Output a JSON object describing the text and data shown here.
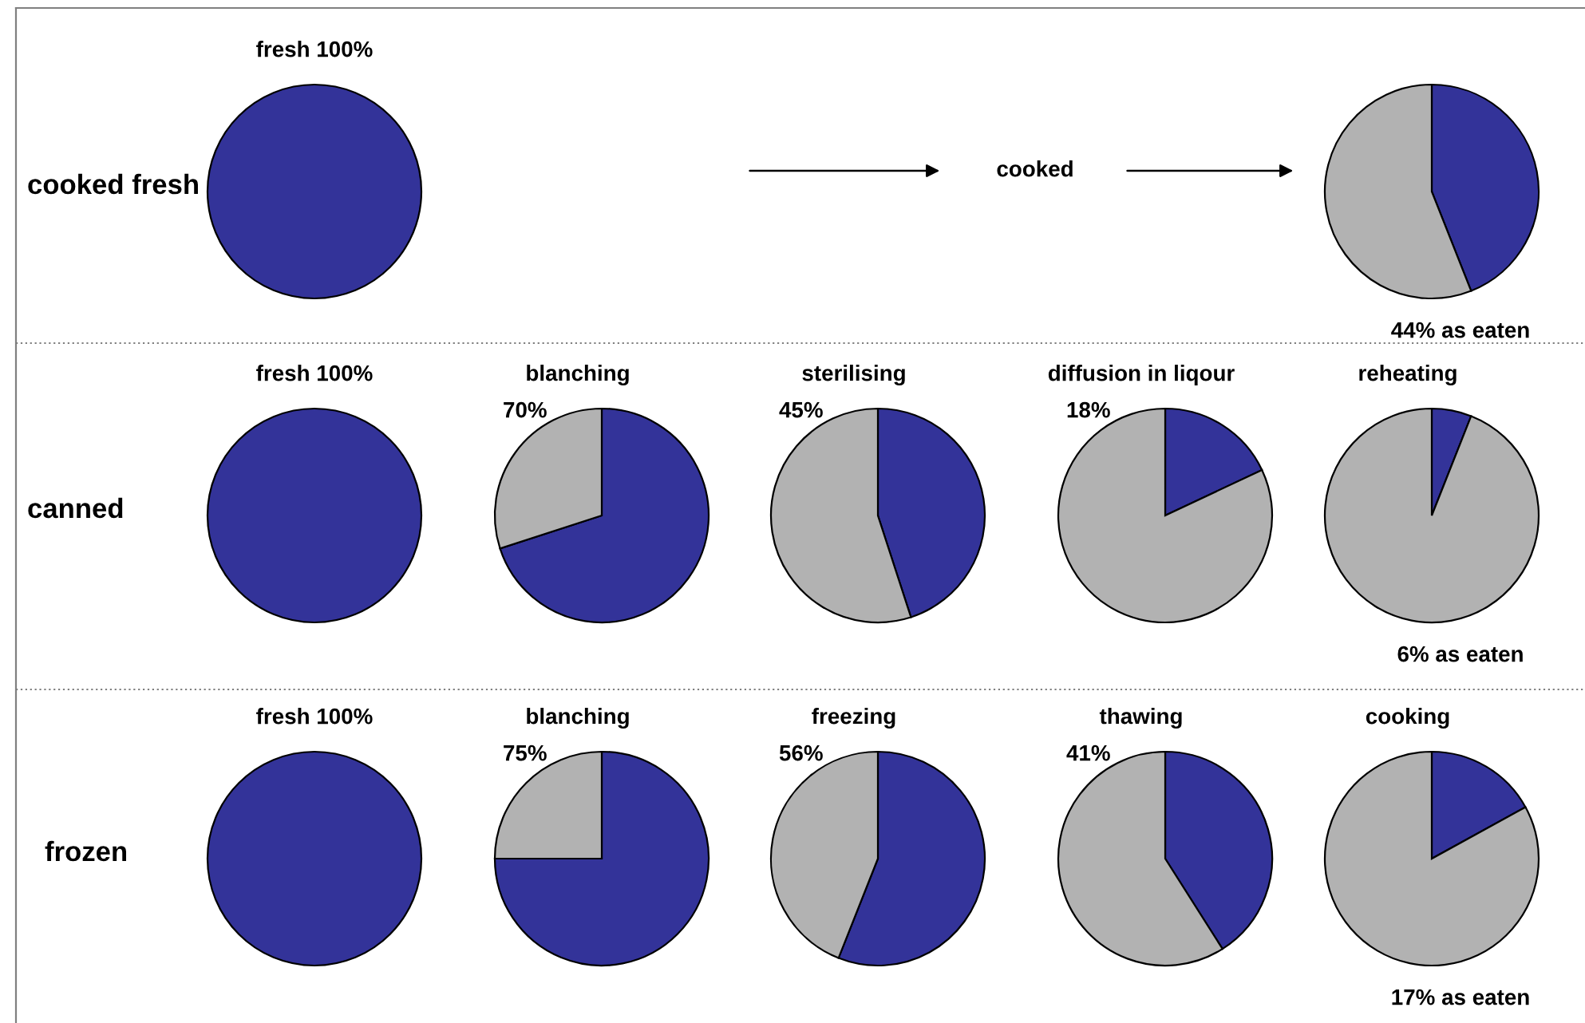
{
  "chart_data": [
    {
      "type": "other",
      "title": "cooked fresh"
    },
    {
      "type": "pie",
      "title": "fresh 100%",
      "categories": [
        null
      ],
      "values": [
        100
      ],
      "colors": [
        "#333399"
      ]
    },
    {
      "type": "other",
      "annotations": [
        "cooked"
      ]
    },
    {
      "type": "pie",
      "categories": [
        null,
        null
      ],
      "values": [
        44,
        56
      ],
      "colors": [
        "#333399",
        "#b2b2b2"
      ],
      "annotations": [
        "44% as eaten"
      ]
    },
    {
      "type": "other",
      "title": "canned"
    },
    {
      "type": "pie",
      "title": "fresh 100%",
      "categories": [
        null
      ],
      "values": [
        100
      ],
      "colors": [
        "#333399"
      ]
    },
    {
      "type": "pie",
      "title": "blanching",
      "subtitle": "70%",
      "categories": [
        null,
        null
      ],
      "values": [
        70,
        30
      ],
      "colors": [
        "#333399",
        "#b2b2b2"
      ]
    },
    {
      "type": "pie",
      "title": "sterilising",
      "subtitle": "45%",
      "categories": [
        null,
        null
      ],
      "values": [
        45,
        55
      ],
      "colors": [
        "#333399",
        "#b2b2b2"
      ]
    },
    {
      "type": "pie",
      "title": "diffusion in liqour",
      "subtitle": "18%",
      "categories": [
        null,
        null
      ],
      "values": [
        18,
        82
      ],
      "colors": [
        "#333399",
        "#b2b2b2"
      ]
    },
    {
      "type": "pie",
      "title": "reheating",
      "categories": [
        null,
        null
      ],
      "values": [
        6,
        94
      ],
      "colors": [
        "#333399",
        "#b2b2b2"
      ],
      "annotations": [
        "6% as eaten"
      ]
    },
    {
      "type": "other",
      "title": "frozen"
    },
    {
      "type": "pie",
      "title": "fresh 100%",
      "categories": [
        null
      ],
      "values": [
        100
      ],
      "colors": [
        "#333399"
      ]
    },
    {
      "type": "pie",
      "title": "blanching",
      "subtitle": "75%",
      "categories": [
        null,
        null
      ],
      "values": [
        75,
        25
      ],
      "colors": [
        "#333399",
        "#b2b2b2"
      ]
    },
    {
      "type": "pie",
      "title": "freezing",
      "subtitle": "56%",
      "categories": [
        null,
        null
      ],
      "values": [
        56,
        44
      ],
      "colors": [
        "#333399",
        "#b2b2b2"
      ]
    },
    {
      "type": "pie",
      "title": "thawing",
      "subtitle": "41%",
      "categories": [
        null,
        null
      ],
      "values": [
        41,
        59
      ],
      "colors": [
        "#333399",
        "#b2b2b2"
      ]
    },
    {
      "type": "pie",
      "title": "cooking",
      "categories": [
        null,
        null
      ],
      "values": [
        17,
        83
      ],
      "colors": [
        "#333399",
        "#b2b2b2"
      ],
      "annotations": [
        "17% as eaten"
      ]
    }
  ]
}
